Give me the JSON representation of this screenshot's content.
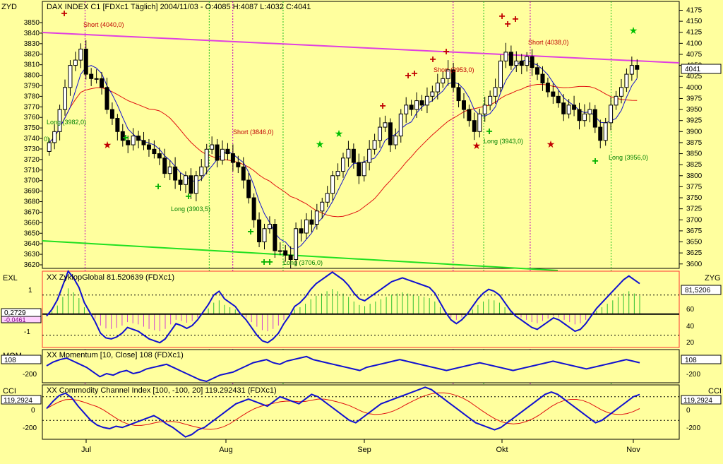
{
  "chart_data": [
    {
      "type": "candlestick",
      "title": "DAX INDEX C1 [FDXc1  Täglich] 2004/11/03 - O:4085 H:4087 L:4032 C:4041",
      "left_axis_label": "ZYD",
      "left_ticks": [
        3620,
        3630,
        3640,
        3650,
        3660,
        3670,
        3680,
        3690,
        3700,
        3710,
        3720,
        3730,
        3740,
        3750,
        3760,
        3770,
        3780,
        3790,
        3800,
        3810,
        3820,
        3830,
        3840,
        3850
      ],
      "right_ticks": [
        3600,
        3625,
        3650,
        3675,
        3700,
        3725,
        3750,
        3775,
        3800,
        3825,
        3850,
        3875,
        3900,
        3925,
        3950,
        3975,
        4000,
        4025,
        4050,
        4075,
        4100,
        4125,
        4150,
        4175
      ],
      "right_ylim": [
        3590,
        4195
      ],
      "last_price": "4041",
      "close_series": [
        3875,
        3900,
        3950,
        4000,
        4050,
        4062,
        4087,
        4030,
        4020,
        4020,
        4000,
        3950,
        3930,
        3900,
        3880,
        3870,
        3890,
        3880,
        3870,
        3860,
        3850,
        3840,
        3805,
        3820,
        3790,
        3780,
        3800,
        3760,
        3800,
        3820,
        3860,
        3870,
        3835,
        3860,
        3850,
        3830,
        3820,
        3790,
        3750,
        3700,
        3650,
        3680,
        3690,
        3630,
        3630,
        3620,
        3610,
        3680,
        3670,
        3700,
        3690,
        3720,
        3740,
        3760,
        3800,
        3810,
        3840,
        3860,
        3830,
        3800,
        3830,
        3860,
        3880,
        3910,
        3920,
        3870,
        3890,
        3940,
        3960,
        3950,
        3970,
        3960,
        3980,
        3990,
        4010,
        4020,
        4040,
        4000,
        3970,
        3950,
        3925,
        3900,
        3940,
        3960,
        3980,
        4000,
        4060,
        4080,
        4050,
        4060,
        4050,
        4070,
        4045,
        4030,
        4010,
        3990,
        3980,
        3965,
        3940,
        3960,
        3950,
        3925,
        3940,
        3950,
        3910,
        3880,
        3920,
        3960,
        3980,
        4000,
        4030,
        4050,
        4041
      ],
      "signals": [
        {
          "label": "Short (4040,0)",
          "kind": "short"
        },
        {
          "label": "Long (3982,0)",
          "kind": "long"
        },
        {
          "label": "Long (3903,5)",
          "kind": "long"
        },
        {
          "label": "Short (3846,0)",
          "kind": "short"
        },
        {
          "label": "Long (3706,0)",
          "kind": "long"
        },
        {
          "label": "Short (3953,0)",
          "kind": "short"
        },
        {
          "label": "Long (3943,0)",
          "kind": "long"
        },
        {
          "label": "Short (4038,0)",
          "kind": "short"
        },
        {
          "label": "Long (3956,0)",
          "kind": "long"
        }
      ],
      "left_edge_fragment": "0)"
    },
    {
      "type": "line",
      "title": "XX ZyklopGlobal 81.520639 (FDXc1)",
      "left_axis_label": "EXL",
      "right_axis_label": "ZYG",
      "left_ticks": [
        "1",
        "-1"
      ],
      "right_ticks": [
        20,
        40,
        60
      ],
      "readout_left_top": "0,2729",
      "readout_left_bottom": "-0,0461",
      "readout_right": "81,5206",
      "ylim": [
        15,
        95
      ]
    },
    {
      "type": "line",
      "title": "XX Momentum [10, Close] 108 (FDXc1)",
      "left_axis_label": "MOM",
      "left_ticks": [
        "-200"
      ],
      "right_ticks": [
        "-200"
      ],
      "readout_left": "108",
      "readout_right": "108"
    },
    {
      "type": "line",
      "title": "XX Commodity Channel Index [100, -100, 20] 119.292431 (FDXc1)",
      "left_axis_label": "CCI",
      "right_axis_label": "CCI",
      "left_ticks": [
        "0",
        "-200"
      ],
      "right_ticks": [
        "0",
        "-200"
      ],
      "readout_left": "119,2924",
      "readout_right": "119,2924",
      "ylim": [
        -260,
        200
      ]
    }
  ],
  "x_axis": {
    "months": [
      "Jul",
      "Aug",
      "Sep",
      "Okt",
      "Nov"
    ]
  },
  "colors": {
    "background": "#ffff9e",
    "price_blue": "#1010d0",
    "ma_red": "#e01010",
    "resistance": "#e040e0",
    "support": "#20e020",
    "long_green": "#00b000",
    "short_red": "#c00000",
    "cycle_magenta": "#c000c0"
  }
}
